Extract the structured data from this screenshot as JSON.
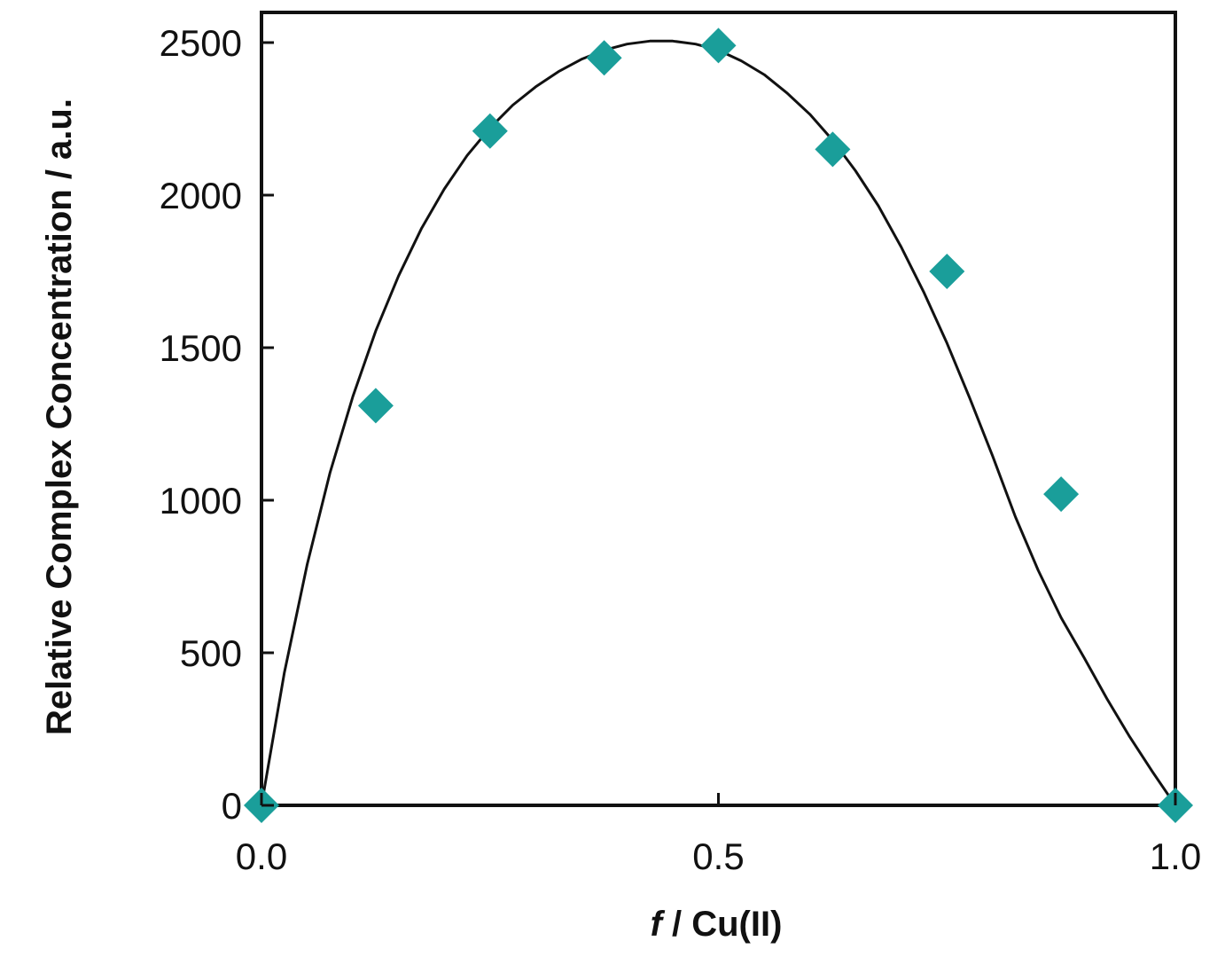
{
  "chart_data": {
    "type": "scatter",
    "title": "",
    "xlabel_italic": "f",
    "xlabel_rest": " / Cu(II)",
    "ylabel": "Relative Complex Concentration / a.u.",
    "xlim": [
      0,
      1
    ],
    "ylim": [
      0,
      2500
    ],
    "x_ticks": [
      0.0,
      0.5,
      1.0
    ],
    "x_tick_labels": [
      "0.0",
      "0.5",
      "1.0"
    ],
    "y_ticks": [
      0,
      500,
      1000,
      1500,
      2000,
      2500
    ],
    "y_tick_labels": [
      "0",
      "500",
      "1000",
      "1500",
      "2000",
      "2500"
    ],
    "grid": false,
    "series": [
      {
        "type": "scatter",
        "marker": "diamond",
        "color": "#1a9e9a",
        "x": [
          0.0,
          0.125,
          0.25,
          0.375,
          0.5,
          0.625,
          0.75,
          0.875,
          1.0
        ],
        "y": [
          0,
          1310,
          2210,
          2450,
          2490,
          2150,
          1750,
          1020,
          0
        ]
      },
      {
        "type": "line",
        "color": "#111111",
        "x": [
          0.0,
          0.025,
          0.05,
          0.075,
          0.1,
          0.125,
          0.15,
          0.175,
          0.2,
          0.225,
          0.25,
          0.275,
          0.3,
          0.325,
          0.35,
          0.375,
          0.4,
          0.425,
          0.45,
          0.475,
          0.5,
          0.525,
          0.55,
          0.575,
          0.6,
          0.625,
          0.65,
          0.675,
          0.7,
          0.725,
          0.75,
          0.775,
          0.8,
          0.825,
          0.85,
          0.875,
          0.9,
          0.925,
          0.95,
          0.975,
          1.0
        ],
        "y": [
          0,
          435,
          790,
          1090,
          1340,
          1555,
          1735,
          1890,
          2020,
          2130,
          2220,
          2295,
          2355,
          2405,
          2445,
          2475,
          2495,
          2505,
          2505,
          2495,
          2475,
          2440,
          2395,
          2335,
          2265,
          2180,
          2080,
          1965,
          1830,
          1680,
          1515,
          1335,
          1145,
          945,
          770,
          615,
          485,
          350,
          225,
          110,
          0
        ]
      }
    ]
  }
}
